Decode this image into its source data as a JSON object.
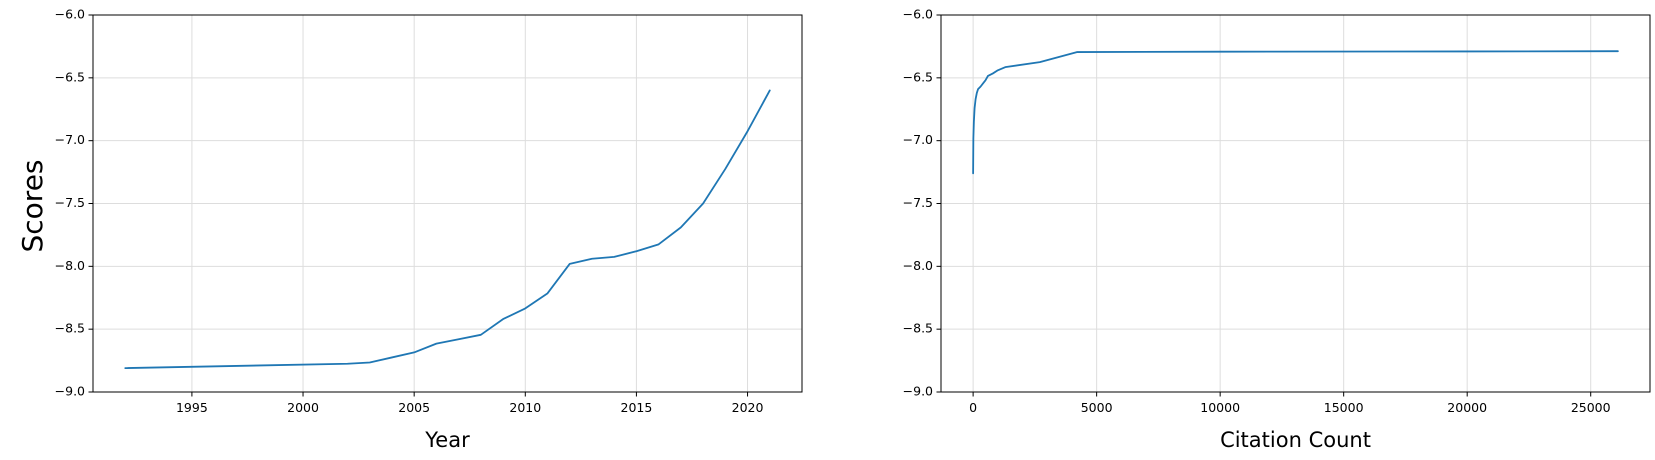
{
  "ylabel": "Scores",
  "chart_data": [
    {
      "type": "line",
      "title": "",
      "xlabel": "Year",
      "ylabel": "Scores",
      "xlim": [
        1990.55,
        2022.45
      ],
      "ylim": [
        -9.0,
        -6.0
      ],
      "xticks": [
        1995,
        2000,
        2005,
        2010,
        2015,
        2020
      ],
      "yticks": [
        -9.0,
        -8.5,
        -8.0,
        -7.5,
        -7.0,
        -6.5,
        -6.0
      ],
      "xtick_labels": [
        "1995",
        "2000",
        "2005",
        "2010",
        "2015",
        "2020"
      ],
      "ytick_labels": [
        "−9.0",
        "−8.5",
        "−8.0",
        "−7.5",
        "−7.0",
        "−6.5",
        "−6.0"
      ],
      "grid": true,
      "series": [
        {
          "color": "#1f77b4",
          "x": [
            1992,
            2002,
            2003,
            2004,
            2005,
            2006,
            2007,
            2008,
            2009,
            2010,
            2011,
            2012,
            2013,
            2014,
            2015,
            2016,
            2017,
            2018,
            2019,
            2020,
            2021
          ],
          "y": [
            -8.81,
            -8.775,
            -8.765,
            -8.725,
            -8.685,
            -8.615,
            -8.58,
            -8.545,
            -8.42,
            -8.335,
            -8.215,
            -7.98,
            -7.94,
            -7.925,
            -7.88,
            -7.825,
            -7.69,
            -7.5,
            -7.225,
            -6.925,
            -6.6
          ]
        }
      ]
    },
    {
      "type": "line",
      "title": "",
      "xlabel": "Citation Count",
      "ylabel": "",
      "xlim": [
        -1300,
        27400
      ],
      "ylim": [
        -9.0,
        -6.0
      ],
      "xticks": [
        0,
        5000,
        10000,
        15000,
        20000,
        25000
      ],
      "yticks": [
        -9.0,
        -8.5,
        -8.0,
        -7.5,
        -7.0,
        -6.5,
        -6.0
      ],
      "xtick_labels": [
        "0",
        "5000",
        "10000",
        "15000",
        "20000",
        "25000"
      ],
      "ytick_labels": [
        "−9.0",
        "−8.5",
        "−8.0",
        "−7.5",
        "−7.0",
        "−6.5",
        "−6.0"
      ],
      "grid": true,
      "series": [
        {
          "color": "#1f77b4",
          "x": [
            0,
            10,
            30,
            60,
            100,
            150,
            200,
            300,
            400,
            500,
            600,
            800,
            1000,
            1300,
            2700,
            4200,
            10000,
            20000,
            26100
          ],
          "y": [
            -7.26,
            -6.98,
            -6.85,
            -6.74,
            -6.67,
            -6.62,
            -6.59,
            -6.57,
            -6.545,
            -6.52,
            -6.485,
            -6.465,
            -6.44,
            -6.415,
            -6.375,
            -6.295,
            -6.292,
            -6.29,
            -6.288
          ]
        }
      ]
    }
  ]
}
